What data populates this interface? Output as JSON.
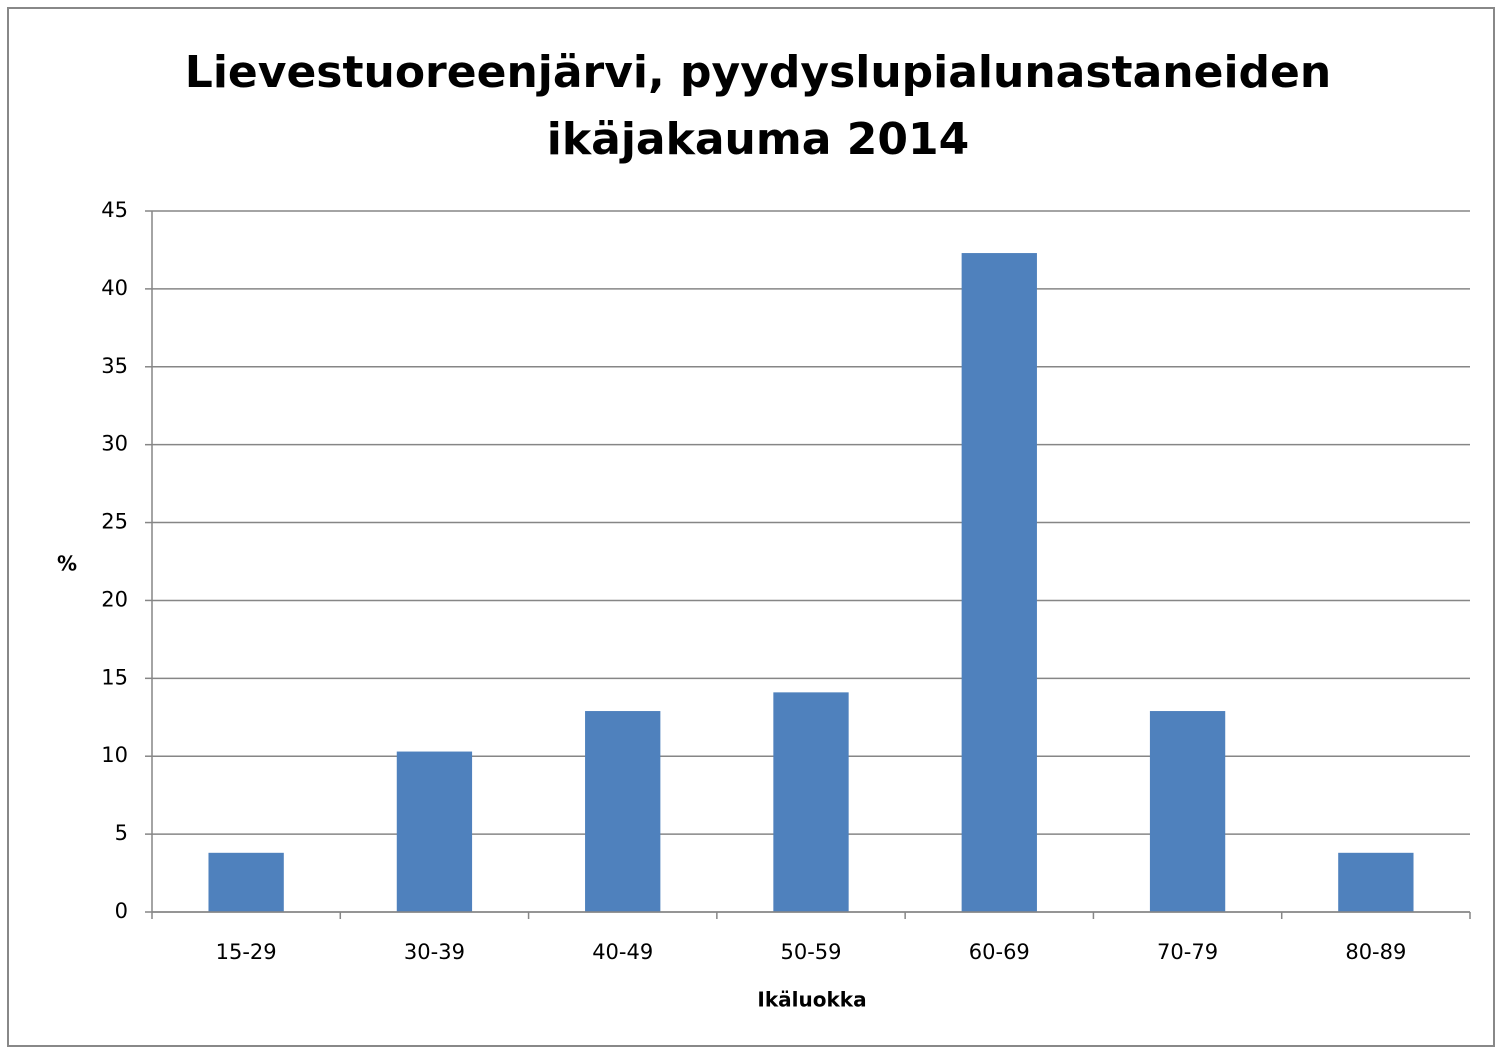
{
  "chart_data": {
    "type": "bar",
    "title": [
      "Lievestuoreenjärvi, pyydyslupialunastaneiden",
      "ikäjakauma 2014"
    ],
    "x_label": "Ikäluokka",
    "y_label": "%",
    "categories": [
      "15-29",
      "30-39",
      "40-49",
      "50-59",
      "60-69",
      "70-79",
      "80-89"
    ],
    "values": [
      3.8,
      10.3,
      12.9,
      14.1,
      42.3,
      12.9,
      3.8
    ],
    "color": "#4f81bd",
    "ylim": [
      0,
      45
    ],
    "yticks": [
      0,
      5,
      10,
      15,
      20,
      25,
      30,
      35,
      40,
      45
    ],
    "grid": true
  }
}
